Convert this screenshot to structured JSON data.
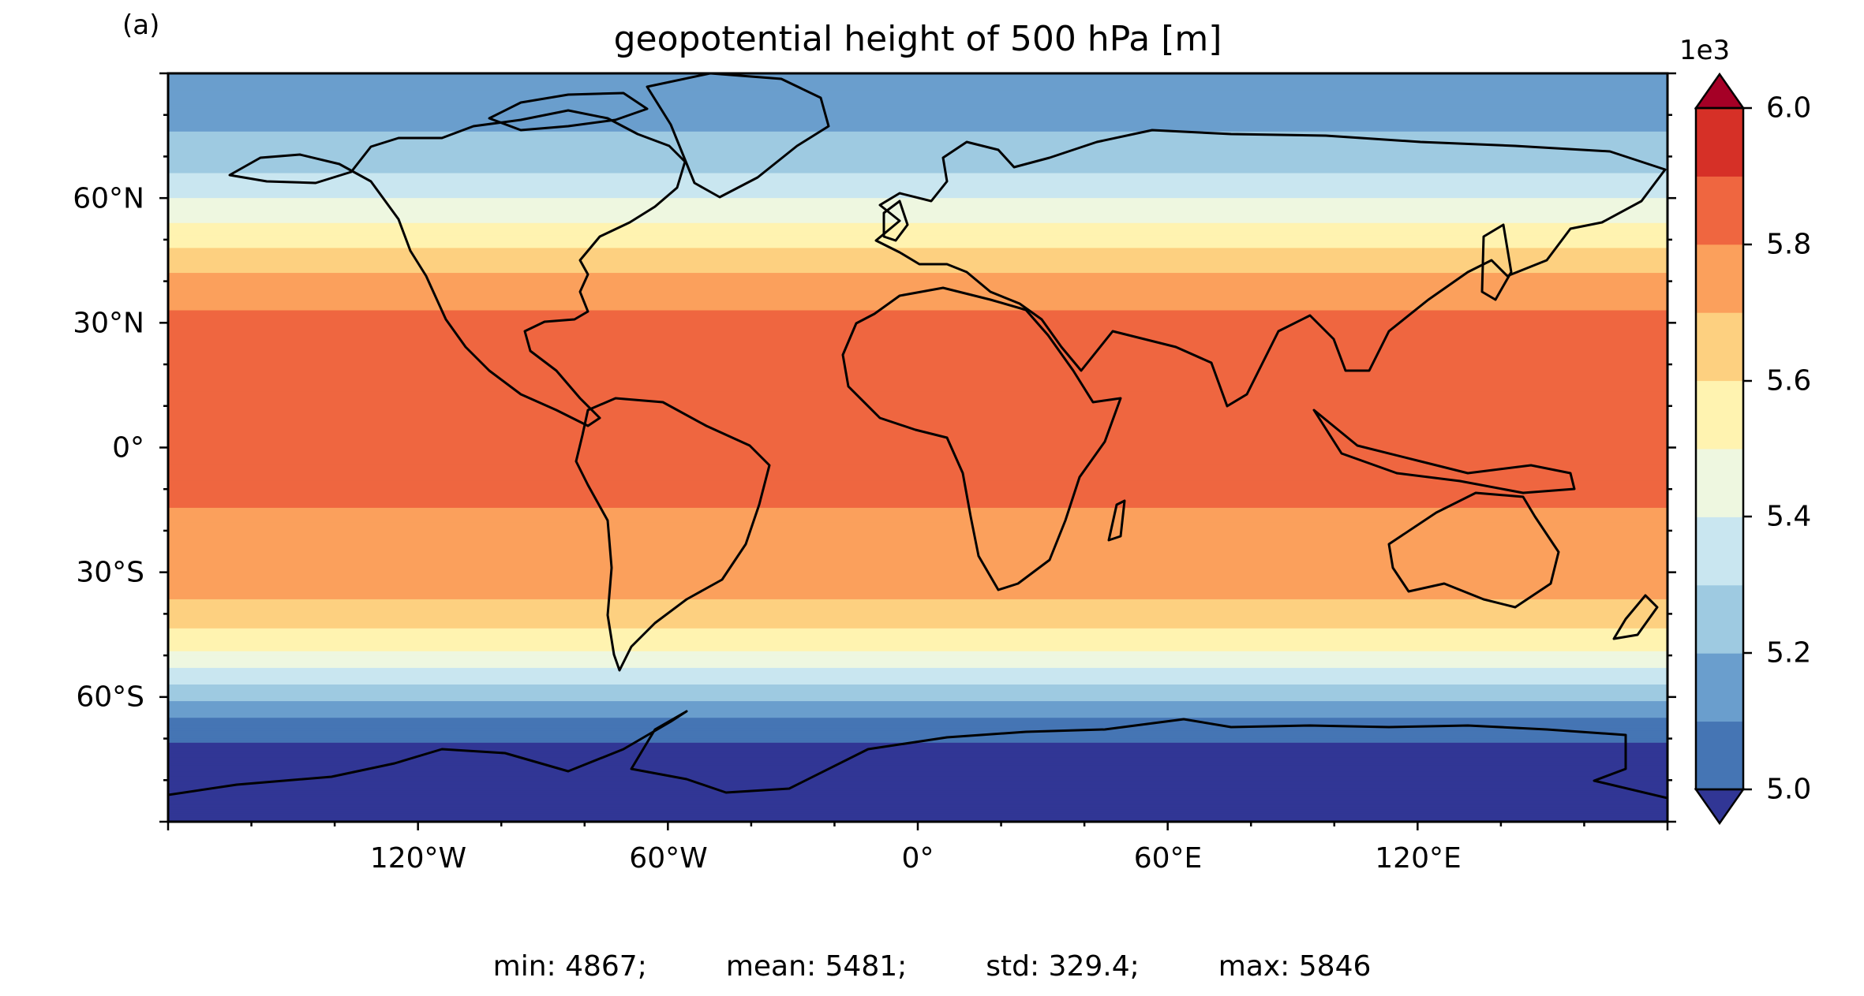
{
  "panel_label": "(a)",
  "title": "geopotential height of 500 hPa [m]",
  "x_ticks": [
    "120°W",
    "60°W",
    "0°",
    "60°E",
    "120°E"
  ],
  "y_ticks": [
    "60°N",
    "30°N",
    "0°",
    "30°S",
    "60°S"
  ],
  "colorbar": {
    "exponent_label": "1e3",
    "ticks": [
      "6.0",
      "5.8",
      "5.6",
      "5.4",
      "5.2",
      "5.0"
    ],
    "levels": [
      5.0,
      5.1,
      5.2,
      5.3,
      5.4,
      5.5,
      5.6,
      5.7,
      5.8,
      5.9,
      6.0
    ],
    "colors": [
      "#4575b4",
      "#6a9ecd",
      "#9ecae1",
      "#c9e6f0",
      "#eef7e0",
      "#fff3b0",
      "#fdd080",
      "#fba05c",
      "#ef6640",
      "#d63027"
    ],
    "under_color": "#313695",
    "over_color": "#a50026"
  },
  "chart_data": {
    "type": "heatmap",
    "title": "geopotential height of 500 hPa [m]",
    "x_range_deg": [
      -180,
      180
    ],
    "y_range_deg": [
      -90,
      90
    ],
    "zonal_profile_m": [
      {
        "lat": -90,
        "value": 4880
      },
      {
        "lat": -75,
        "value": 4950
      },
      {
        "lat": -67,
        "value": 5050
      },
      {
        "lat": -63,
        "value": 5150
      },
      {
        "lat": -59,
        "value": 5250
      },
      {
        "lat": -55,
        "value": 5350
      },
      {
        "lat": -51,
        "value": 5450
      },
      {
        "lat": -47,
        "value": 5550
      },
      {
        "lat": -40,
        "value": 5650
      },
      {
        "lat": -33,
        "value": 5750
      },
      {
        "lat": 0,
        "value": 5840
      },
      {
        "lat": 33,
        "value": 5800
      },
      {
        "lat": 42,
        "value": 5700
      },
      {
        "lat": 48,
        "value": 5600
      },
      {
        "lat": 54,
        "value": 5500
      },
      {
        "lat": 60,
        "value": 5400
      },
      {
        "lat": 66,
        "value": 5300
      },
      {
        "lat": 76,
        "value": 5200
      },
      {
        "lat": 90,
        "value": 5150
      }
    ]
  },
  "stats": {
    "min": "min: 4867;",
    "mean": "mean: 5481;",
    "std": "std: 329.4;",
    "max": "max: 5846"
  }
}
